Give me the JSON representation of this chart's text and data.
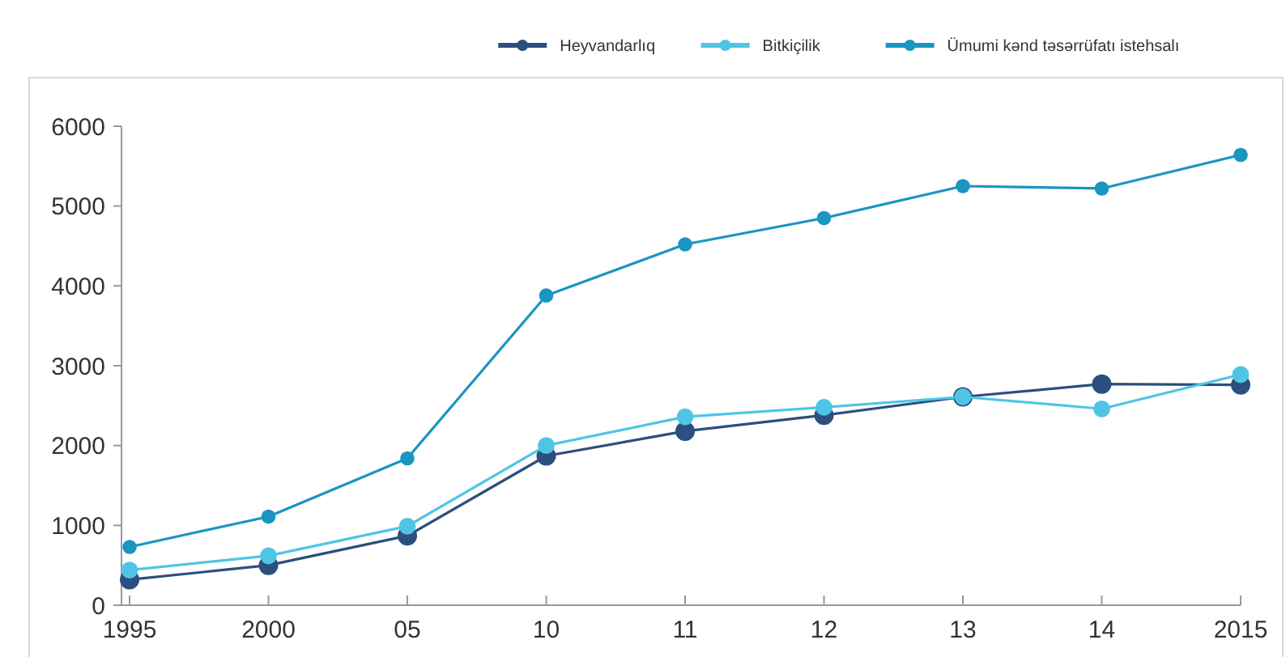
{
  "chart_data": {
    "type": "line",
    "categories": [
      "1995",
      "2000",
      "05",
      "10",
      "11",
      "12",
      "13",
      "14",
      "2015"
    ],
    "series": [
      {
        "name": "Heyvandarlıq",
        "color": "#2b4f7e",
        "values": [
          320,
          500,
          870,
          1870,
          2180,
          2380,
          2610,
          2770,
          2760
        ]
      },
      {
        "name": "Bitkiçilik",
        "color": "#4fc5e6",
        "values": [
          440,
          620,
          990,
          2000,
          2360,
          2480,
          2610,
          2460,
          2890
        ]
      },
      {
        "name": "Ümumi kənd təsərrüfatı istehsalı",
        "color": "#1a95c0",
        "values": [
          730,
          1110,
          1840,
          3880,
          4520,
          4850,
          5250,
          5220,
          5640
        ]
      }
    ],
    "ylim": [
      0,
      6000
    ],
    "yticks": [
      0,
      1000,
      2000,
      3000,
      4000,
      5000,
      6000
    ],
    "grid": false,
    "legend": "top right",
    "marker": "circle",
    "line_style": "solid"
  }
}
